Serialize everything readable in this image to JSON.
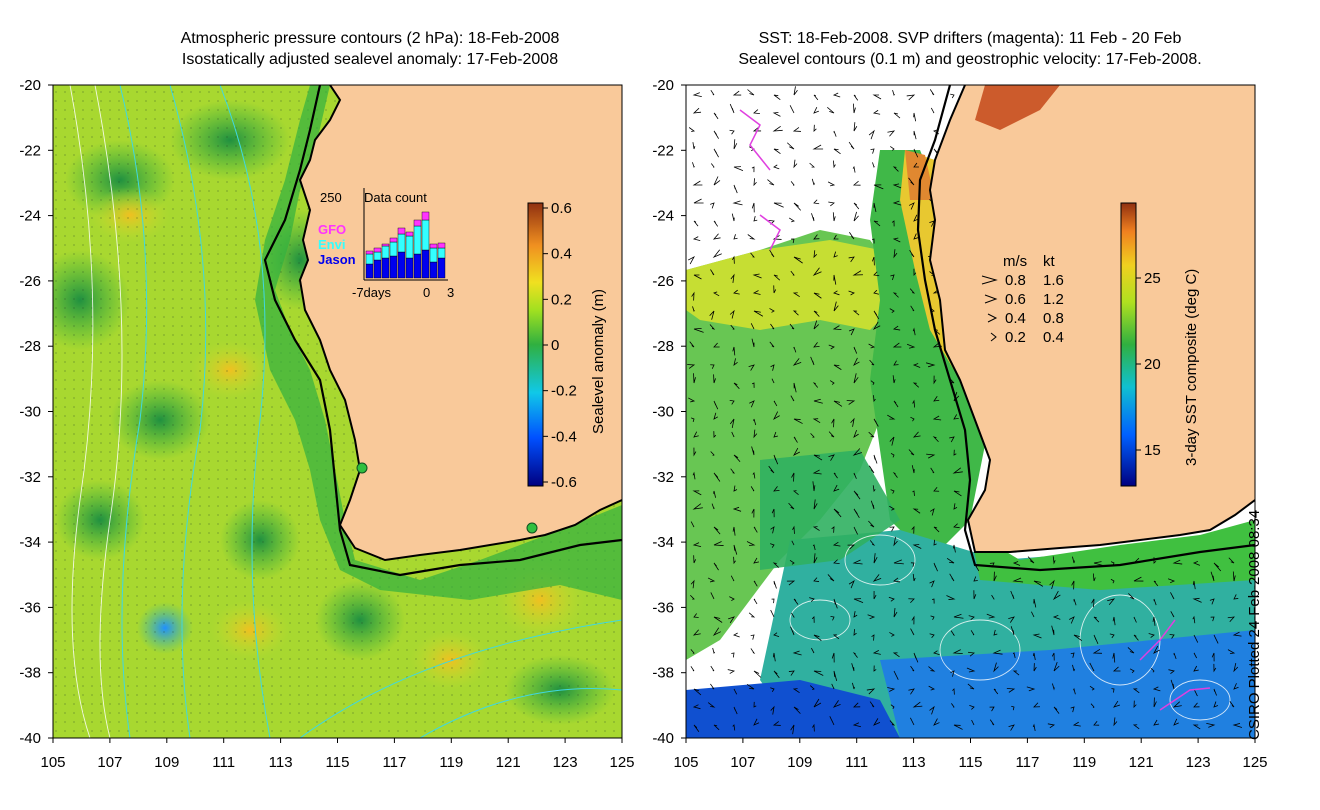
{
  "left_panel": {
    "title_line1": "Atmospheric pressure contours (2 hPa): 18-Feb-2008",
    "title_line2": "Isostatically adjusted sealevel anomaly: 17-Feb-2008",
    "colorbar": {
      "label": "Sealevel anomaly (m)",
      "ticks": [
        "0.6",
        "0.4",
        "0.2",
        "0",
        "-0.2",
        "-0.4",
        "-0.6"
      ]
    },
    "data_count": {
      "title": "Data count",
      "y_label": "250",
      "x_labels": [
        "-7days",
        "0",
        "3"
      ],
      "legend": [
        "GFO",
        "Envi",
        "Jason"
      ],
      "legend_colors": [
        "#ff33ff",
        "#33ffff",
        "#0000ee"
      ]
    }
  },
  "right_panel": {
    "title_line1": "SST: 18-Feb-2008. SVP drifters (magenta): 11 Feb - 20 Feb",
    "title_line2": "Sealevel contours (0.1 m) and geostrophic velocity: 17-Feb-2008.",
    "colorbar": {
      "label": "3-day SST composite (deg C)",
      "ticks": [
        "25",
        "20",
        "15"
      ]
    },
    "velocity_legend": {
      "header_ms": "m/s",
      "header_kt": "kt",
      "rows": [
        {
          "ms": "0.8",
          "kt": "1.6"
        },
        {
          "ms": "0.6",
          "kt": "1.2"
        },
        {
          "ms": "0.4",
          "kt": "0.8"
        },
        {
          "ms": "0.2",
          "kt": "0.4"
        }
      ]
    }
  },
  "axes": {
    "lat_ticks": [
      "-20",
      "-22",
      "-24",
      "-26",
      "-28",
      "-30",
      "-32",
      "-34",
      "-36",
      "-38",
      "-40"
    ],
    "lon_ticks": [
      "105",
      "107",
      "109",
      "111",
      "113",
      "115",
      "117",
      "119",
      "121",
      "123",
      "125"
    ]
  },
  "credit": "CSIRO Plotted 24-Feb-2008 08:34",
  "colors": {
    "land": "#f9c99a",
    "ocean_green": "#3ab54a",
    "ocean_yellow": "#c8e020",
    "contour_cyan": "#40d8e0",
    "coast": "#000000"
  }
}
